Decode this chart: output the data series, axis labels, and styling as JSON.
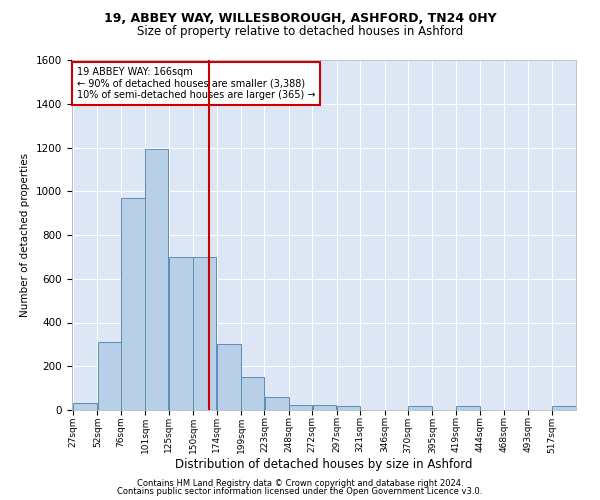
{
  "title1": "19, ABBEY WAY, WILLESBOROUGH, ASHFORD, TN24 0HY",
  "title2": "Size of property relative to detached houses in Ashford",
  "xlabel": "Distribution of detached houses by size in Ashford",
  "ylabel": "Number of detached properties",
  "footnote1": "Contains HM Land Registry data © Crown copyright and database right 2024.",
  "footnote2": "Contains public sector information licensed under the Open Government Licence v3.0.",
  "property_label": "19 ABBEY WAY: 166sqm",
  "annotation_line1": "← 90% of detached houses are smaller (3,388)",
  "annotation_line2": "10% of semi-detached houses are larger (365) →",
  "vline_x": 166,
  "bar_edges": [
    27,
    52,
    76,
    101,
    125,
    150,
    174,
    199,
    223,
    248,
    272,
    297,
    321,
    346,
    370,
    395,
    419,
    444,
    468,
    493,
    517
  ],
  "bar_heights": [
    30,
    310,
    970,
    1195,
    700,
    700,
    300,
    150,
    60,
    25,
    25,
    20,
    0,
    0,
    20,
    0,
    20,
    0,
    0,
    0,
    20
  ],
  "bar_color": "#b8cfe8",
  "bar_edge_color": "#5b8db8",
  "vline_color": "#cc0000",
  "background_color": "#dce6f5",
  "annotation_box_color": "#ffffff",
  "annotation_box_edge": "#cc0000",
  "ylim": [
    0,
    1600
  ],
  "yticks": [
    0,
    200,
    400,
    600,
    800,
    1000,
    1200,
    1400,
    1600
  ],
  "grid_color": "#ffffff",
  "title1_fontsize": 9,
  "title2_fontsize": 8.5,
  "ylabel_fontsize": 7.5,
  "xlabel_fontsize": 8.5,
  "footnote_fontsize": 6.0,
  "annotation_fontsize": 7.0,
  "ytick_fontsize": 7.5,
  "xtick_fontsize": 6.5
}
